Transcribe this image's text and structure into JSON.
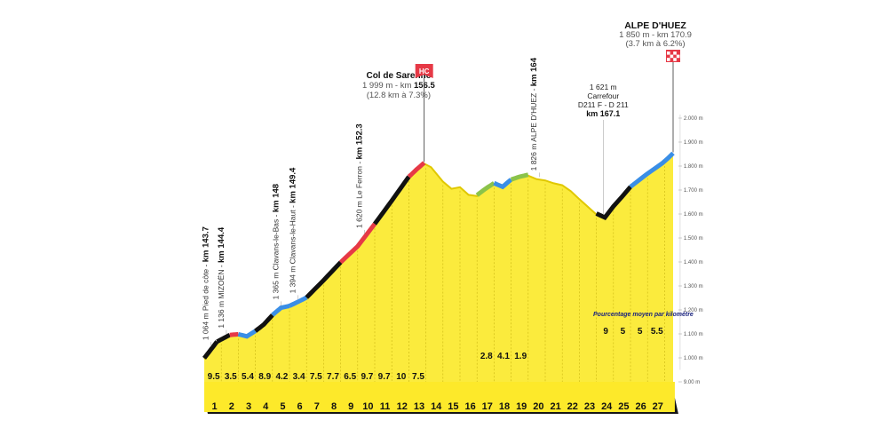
{
  "chart_data": {
    "type": "area",
    "km_axis": [
      "1",
      "2",
      "3",
      "4",
      "5",
      "6",
      "7",
      "8",
      "9",
      "10",
      "11",
      "12",
      "13",
      "14",
      "15",
      "16",
      "17",
      "18",
      "19",
      "20",
      "21",
      "22",
      "23",
      "24",
      "25",
      "26",
      "27"
    ],
    "gradients": [
      {
        "km": "1",
        "value": "9.5"
      },
      {
        "km": "2",
        "value": "3.5"
      },
      {
        "km": "3",
        "value": "5.4"
      },
      {
        "km": "4",
        "value": "8.9"
      },
      {
        "km": "5",
        "value": "4.2"
      },
      {
        "km": "6",
        "value": "3.4"
      },
      {
        "km": "7",
        "value": "7.5"
      },
      {
        "km": "8",
        "value": "7.7"
      },
      {
        "km": "9",
        "value": "6.5"
      },
      {
        "km": "10",
        "value": "9.7"
      },
      {
        "km": "11",
        "value": "9.7"
      },
      {
        "km": "12",
        "value": "10"
      },
      {
        "km": "13",
        "value": "7.5"
      },
      {
        "km": "17",
        "value": "2.8"
      },
      {
        "km": "18",
        "value": "4.1"
      },
      {
        "km": "19",
        "value": "1.9"
      },
      {
        "km": "24",
        "value": "9"
      },
      {
        "km": "25",
        "value": "5"
      },
      {
        "km": "26",
        "value": "5"
      },
      {
        "km": "27",
        "value": "5.5"
      }
    ],
    "altitude_ticks": [
      "2.000 m",
      "1.900 m",
      "1.800 m",
      "1.700 m",
      "1.600 m",
      "1.500 m",
      "1.400 m",
      "1.300 m",
      "1.200 m",
      "1.100 m",
      "1.000 m",
      "9.00 m"
    ],
    "profile": [
      {
        "x": 0,
        "alt": 995
      },
      {
        "x": 0.75,
        "alt": 1064
      },
      {
        "x": 1.5,
        "alt": 1092
      },
      {
        "x": 2,
        "alt": 1095
      },
      {
        "x": 2.5,
        "alt": 1086
      },
      {
        "x": 3,
        "alt": 1108
      },
      {
        "x": 3.5,
        "alt": 1136
      },
      {
        "x": 4,
        "alt": 1175
      },
      {
        "x": 4.5,
        "alt": 1205
      },
      {
        "x": 5,
        "alt": 1213
      },
      {
        "x": 5.5,
        "alt": 1230
      },
      {
        "x": 6,
        "alt": 1248
      },
      {
        "x": 7,
        "alt": 1320
      },
      {
        "x": 8,
        "alt": 1395
      },
      {
        "x": 9,
        "alt": 1462
      },
      {
        "x": 10,
        "alt": 1555
      },
      {
        "x": 11,
        "alt": 1652
      },
      {
        "x": 12,
        "alt": 1752
      },
      {
        "x": 12.5,
        "alt": 1785
      },
      {
        "x": 12.9,
        "alt": 1810
      },
      {
        "x": 13.3,
        "alt": 1795
      },
      {
        "x": 14,
        "alt": 1735
      },
      {
        "x": 14.5,
        "alt": 1705
      },
      {
        "x": 15,
        "alt": 1712
      },
      {
        "x": 15.5,
        "alt": 1680
      },
      {
        "x": 16,
        "alt": 1675
      },
      {
        "x": 16.5,
        "alt": 1702
      },
      {
        "x": 17,
        "alt": 1725
      },
      {
        "x": 17.5,
        "alt": 1710
      },
      {
        "x": 18,
        "alt": 1740
      },
      {
        "x": 18.5,
        "alt": 1752
      },
      {
        "x": 19,
        "alt": 1760
      },
      {
        "x": 19.5,
        "alt": 1745
      },
      {
        "x": 20,
        "alt": 1740
      },
      {
        "x": 20.5,
        "alt": 1728
      },
      {
        "x": 21,
        "alt": 1720
      },
      {
        "x": 21.5,
        "alt": 1695
      },
      {
        "x": 22,
        "alt": 1662
      },
      {
        "x": 22.5,
        "alt": 1630
      },
      {
        "x": 23,
        "alt": 1598
      },
      {
        "x": 23.5,
        "alt": 1582
      },
      {
        "x": 24,
        "alt": 1628
      },
      {
        "x": 24.5,
        "alt": 1668
      },
      {
        "x": 25,
        "alt": 1710
      },
      {
        "x": 26,
        "alt": 1765
      },
      {
        "x": 27,
        "alt": 1815
      },
      {
        "x": 27.5,
        "alt": 1850
      }
    ],
    "segment_colors": [
      {
        "from": 0,
        "to": 0.75,
        "color": "#111111"
      },
      {
        "from": 0.75,
        "to": 1.5,
        "color": "#111111"
      },
      {
        "from": 1.5,
        "to": 2,
        "color": "#e63946"
      },
      {
        "from": 2,
        "to": 3,
        "color": "#3a8ee6"
      },
      {
        "from": 3,
        "to": 4,
        "color": "#111111"
      },
      {
        "from": 4,
        "to": 5,
        "color": "#3a8ee6"
      },
      {
        "from": 5,
        "to": 6,
        "color": "#3a8ee6"
      },
      {
        "from": 6,
        "to": 8,
        "color": "#111111"
      },
      {
        "from": 8,
        "to": 10,
        "color": "#e63946"
      },
      {
        "from": 10,
        "to": 12,
        "color": "#111111"
      },
      {
        "from": 12,
        "to": 12.9,
        "color": "#e63946"
      },
      {
        "from": 16,
        "to": 17,
        "color": "#8bc34a"
      },
      {
        "from": 17,
        "to": 18,
        "color": "#3a8ee6"
      },
      {
        "from": 18,
        "to": 19,
        "color": "#8bc34a"
      },
      {
        "from": 23,
        "to": 25,
        "color": "#111111"
      },
      {
        "from": 25,
        "to": 27.5,
        "color": "#3a8ee6"
      }
    ],
    "point_labels": [
      {
        "x": 0.45,
        "lines": [
          "1 064 m Pied de côte - ",
          "km 143.7"
        ]
      },
      {
        "x": 1.35,
        "lines": [
          "1 136 m MIZOËN - ",
          "km 144.4"
        ]
      },
      {
        "x": 4.55,
        "lines": [
          "1 365 m Clavans-le-Bas - ",
          "km 148"
        ]
      },
      {
        "x": 5.55,
        "lines": [
          "1 394 m Clavans-le-Haut - ",
          "km 149.4"
        ]
      },
      {
        "x": 9.45,
        "lines": [
          "1 620 m Le Ferron - ",
          "km 152.3"
        ]
      },
      {
        "x": 19.7,
        "lines": [
          "1 826 m ALPE D'HUEZ - ",
          "km 164"
        ]
      }
    ],
    "summits": {
      "sarenne": {
        "title": "Col de Sarenne",
        "line1": "1 999 m - km",
        "line1_bold": "156.5",
        "line2": "(12.8 km à 7.3%)",
        "badge": "HC"
      },
      "carrefour": {
        "l1": "1 621 m",
        "l2": "Carrefour",
        "l3": "D211 F - D 211",
        "l4": "km 167.1"
      },
      "finish": {
        "title": "ALPE D'HUEZ",
        "line1": "1 850 m - km 170.9",
        "line2": "(3.7 km à 6.2%)"
      }
    },
    "note": "Pourcentage moyen par kilomètre",
    "colors": {
      "area": "#fbeb3d",
      "stripe": "#f2dc22",
      "base": "#fde92a",
      "dark": "#161616",
      "hc": "#e63946"
    }
  }
}
